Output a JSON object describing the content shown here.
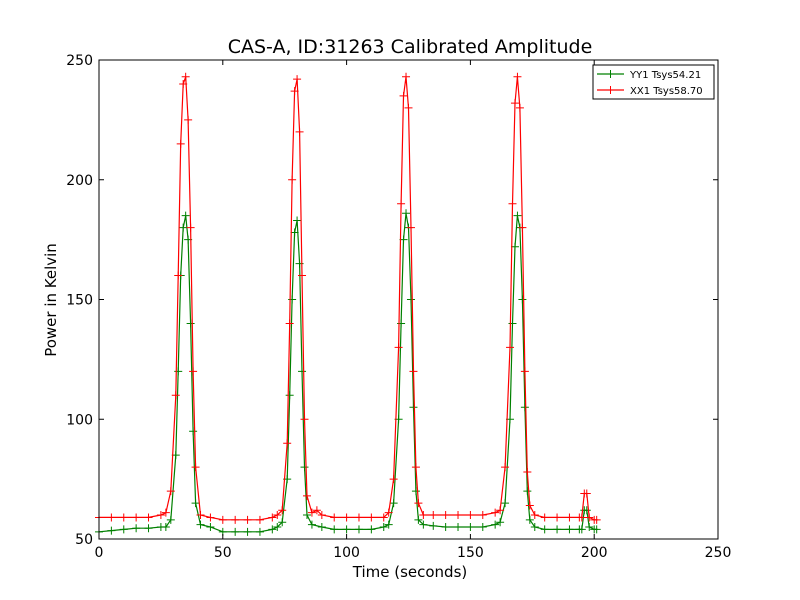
{
  "chart_data": {
    "type": "line",
    "title": "CAS-A, ID:31263 Calibrated Amplitude",
    "xlabel": "Time (seconds)",
    "ylabel": "Power in Kelvin",
    "xlim": [
      0,
      250
    ],
    "ylim": [
      50,
      250
    ],
    "xticks": [
      0,
      50,
      100,
      150,
      200,
      250
    ],
    "yticks": [
      50,
      100,
      150,
      200,
      250
    ],
    "grid": false,
    "legend_position": "top-right",
    "marker": "+",
    "series": [
      {
        "name": "YY1 Tsys54.21",
        "color": "#008000",
        "x": [
          0,
          5,
          10,
          15,
          20,
          25,
          27,
          29,
          31,
          32,
          33,
          34,
          35,
          36,
          37,
          38,
          39,
          41,
          45,
          50,
          55,
          60,
          65,
          70,
          72,
          74,
          76,
          77,
          78,
          79,
          80,
          81,
          82,
          83,
          84,
          86,
          90,
          95,
          100,
          105,
          110,
          115,
          117,
          119,
          121,
          122,
          123,
          124,
          125,
          126,
          127,
          128,
          129,
          131,
          135,
          140,
          145,
          150,
          155,
          160,
          162,
          164,
          166,
          167,
          168,
          169,
          170,
          171,
          172,
          173,
          174,
          176,
          180,
          185,
          190,
          194,
          195,
          196,
          197,
          198,
          200,
          201
        ],
        "y": [
          53,
          53.5,
          54,
          54.5,
          54.5,
          55,
          55,
          58,
          85,
          120,
          160,
          180,
          185,
          175,
          140,
          95,
          65,
          56,
          55,
          53,
          53,
          53,
          53,
          54,
          55,
          57,
          75,
          110,
          150,
          178,
          183,
          165,
          120,
          80,
          60,
          56,
          55,
          54,
          54,
          54,
          54,
          55,
          56,
          65,
          100,
          140,
          175,
          186,
          180,
          150,
          105,
          70,
          58,
          56,
          55.5,
          55,
          55,
          55,
          55,
          56,
          57,
          65,
          100,
          140,
          172,
          185,
          180,
          150,
          105,
          70,
          58,
          55,
          54,
          54,
          54,
          54,
          54,
          62,
          62,
          55,
          54,
          54
        ]
      },
      {
        "name": "XX1 Tsys58.70",
        "color": "#ff0000",
        "x": [
          0,
          5,
          10,
          15,
          20,
          25,
          27,
          29,
          31,
          32,
          33,
          34,
          35,
          36,
          37,
          38,
          39,
          41,
          45,
          50,
          55,
          60,
          65,
          70,
          72,
          74,
          76,
          77,
          78,
          79,
          80,
          81,
          82,
          83,
          84,
          86,
          88,
          90,
          95,
          100,
          105,
          110,
          115,
          117,
          119,
          121,
          122,
          123,
          124,
          125,
          126,
          127,
          128,
          129,
          131,
          135,
          140,
          145,
          150,
          155,
          160,
          162,
          164,
          166,
          167,
          168,
          169,
          170,
          171,
          172,
          173,
          174,
          176,
          180,
          185,
          190,
          194,
          195,
          196,
          197,
          198,
          200,
          201
        ],
        "y": [
          59,
          59,
          59,
          59,
          59,
          60,
          61,
          70,
          110,
          160,
          215,
          240,
          243,
          225,
          180,
          120,
          80,
          60,
          59,
          58,
          58,
          58,
          58,
          59,
          60,
          62,
          90,
          140,
          200,
          237,
          242,
          220,
          160,
          100,
          68,
          61,
          62,
          60,
          59,
          59,
          59,
          59,
          59,
          61,
          75,
          130,
          190,
          235,
          243,
          230,
          180,
          120,
          80,
          65,
          60,
          60,
          60,
          60,
          60,
          60,
          61,
          62,
          80,
          130,
          190,
          232,
          243,
          230,
          180,
          120,
          78,
          64,
          60,
          59,
          59,
          59,
          59,
          59,
          69,
          69,
          59,
          58,
          58
        ]
      }
    ]
  }
}
